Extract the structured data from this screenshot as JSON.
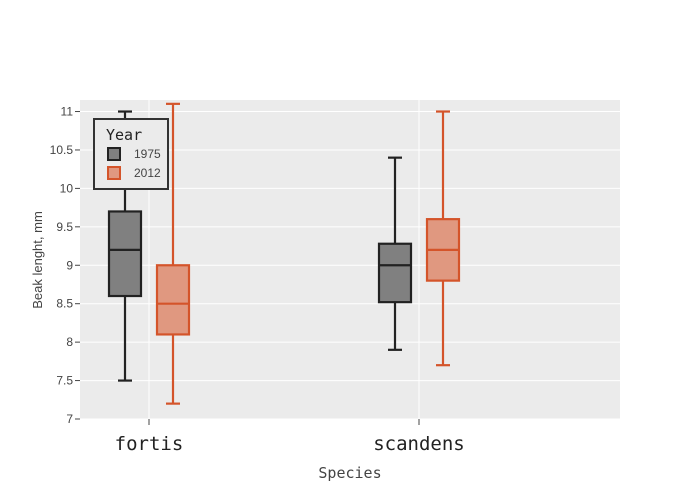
{
  "chart_data": {
    "type": "box",
    "xlabel": "Species",
    "ylabel": "Beak lenght, mm",
    "ylim": [
      7,
      11.15
    ],
    "yticks": [
      7,
      7.5,
      8,
      8.5,
      9,
      9.5,
      10,
      10.5,
      11
    ],
    "categories": [
      "fortis",
      "scandens"
    ],
    "grid": true,
    "legend": {
      "title": "Year",
      "placement": "top-left"
    },
    "series": [
      {
        "name": "1975",
        "color": "#222222",
        "fill": "#808080",
        "boxes": [
          {
            "category": "fortis",
            "min": 7.5,
            "q1": 8.6,
            "median": 9.2,
            "q3": 9.7,
            "max": 11.0
          },
          {
            "category": "scandens",
            "min": 7.9,
            "q1": 8.52,
            "median": 9.0,
            "q3": 9.28,
            "max": 10.4
          }
        ]
      },
      {
        "name": "2012",
        "color": "#d4542a",
        "fill": "#e09880",
        "boxes": [
          {
            "category": "fortis",
            "min": 7.2,
            "q1": 8.1,
            "median": 8.5,
            "q3": 9.0,
            "max": 11.1
          },
          {
            "category": "scandens",
            "min": 7.7,
            "q1": 8.8,
            "median": 9.2,
            "q3": 9.6,
            "max": 11.0
          }
        ]
      }
    ]
  }
}
